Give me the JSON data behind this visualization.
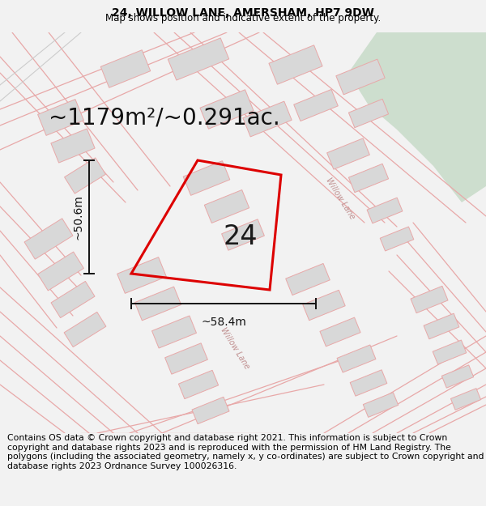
{
  "title": "24, WILLOW LANE, AMERSHAM, HP7 9DW",
  "subtitle": "Map shows position and indicative extent of the property.",
  "area_text": "~1179m²/~0.291ac.",
  "label_24": "24",
  "dim_v": "~50.6m",
  "dim_h": "~58.4m",
  "road_label": "Willow Lane",
  "footer": "Contains OS data © Crown copyright and database right 2021. This information is subject to Crown copyright and database rights 2023 and is reproduced with the permission of HM Land Registry. The polygons (including the associated geometry, namely x, y co-ordinates) are subject to Crown copyright and database rights 2023 Ordnance Survey 100026316.",
  "bg_color": "#f2f2f2",
  "map_bg": "#ffffff",
  "green_color": "#cddece",
  "building_color": "#d8d8d8",
  "red_plot_color": "#dd0000",
  "pink_line_color": "#e8a8a8",
  "gray_line_color": "#aaaaaa",
  "title_fontsize": 10,
  "subtitle_fontsize": 8.5,
  "area_fontsize": 20,
  "label_fontsize": 24,
  "footer_fontsize": 7.8,
  "dim_fontsize": 10,
  "road_label_fontsize": 7
}
